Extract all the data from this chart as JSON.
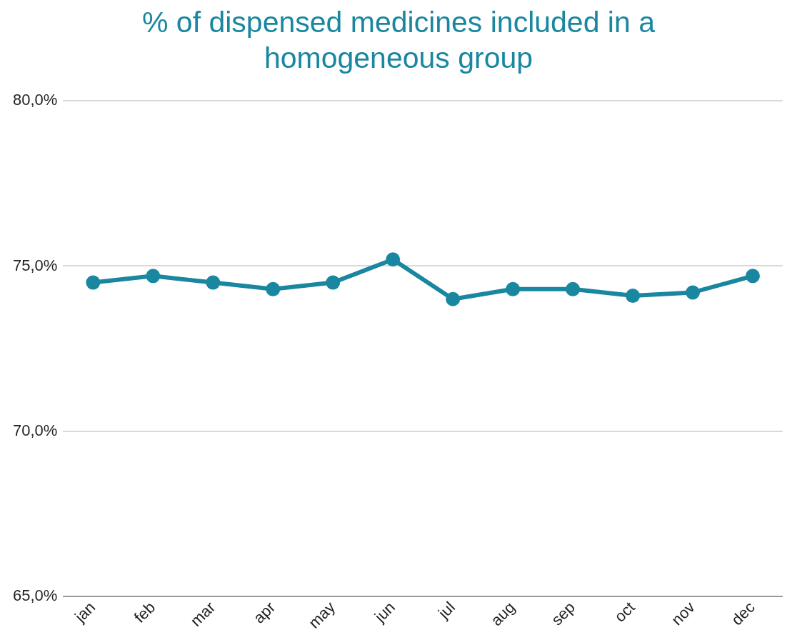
{
  "chart_data": {
    "type": "line",
    "title": "% of dispensed medicines included in a homogeneous group",
    "categories": [
      "jan",
      "feb",
      "mar",
      "apr",
      "may",
      "jun",
      "jul",
      "aug",
      "sep",
      "oct",
      "nov",
      "dec"
    ],
    "series": [
      {
        "color": "#1a87a0",
        "values": [
          74.5,
          74.7,
          74.5,
          74.3,
          74.5,
          75.2,
          74.0,
          74.3,
          74.3,
          74.1,
          74.2,
          74.7
        ]
      }
    ],
    "ylim": [
      65,
      80
    ],
    "yticks": [
      {
        "value": 65,
        "label": "65,0%"
      },
      {
        "value": 70,
        "label": "70,0%"
      },
      {
        "value": 75,
        "label": "75,0%"
      },
      {
        "value": 80,
        "label": "80,0%"
      }
    ],
    "grid": "y",
    "legend": false,
    "marker": "circle",
    "line_style": "solid"
  }
}
